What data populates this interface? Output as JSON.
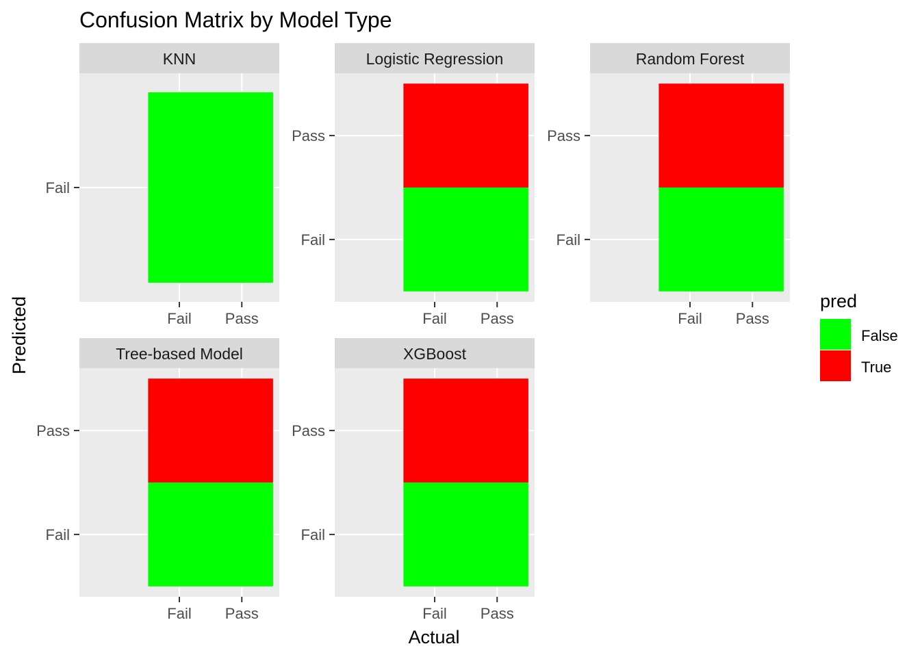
{
  "chart_data": {
    "type": "heatmap",
    "title": "Confusion Matrix by Model Type",
    "xlabel": "Actual",
    "ylabel": "Predicted",
    "x_categories": [
      "Fail",
      "Pass"
    ],
    "y_categories": [
      "Fail",
      "Pass"
    ],
    "colors": {
      "False": "#00FF00",
      "True": "#FF0000"
    },
    "legend": {
      "title": "pred",
      "position": "right",
      "entries": [
        {
          "label": "False",
          "color": "#00FF00"
        },
        {
          "label": "True",
          "color": "#FF0000"
        }
      ]
    },
    "facets": [
      {
        "name": "KNN",
        "y_levels": [
          "Fail"
        ],
        "rows": [
          {
            "predicted": "Fail",
            "pred": "False"
          }
        ]
      },
      {
        "name": "Logistic Regression",
        "y_levels": [
          "Fail",
          "Pass"
        ],
        "rows": [
          {
            "predicted": "Fail",
            "pred": "False"
          },
          {
            "predicted": "Pass",
            "pred": "True"
          }
        ]
      },
      {
        "name": "Random Forest",
        "y_levels": [
          "Fail",
          "Pass"
        ],
        "rows": [
          {
            "predicted": "Fail",
            "pred": "False"
          },
          {
            "predicted": "Pass",
            "pred": "True"
          }
        ]
      },
      {
        "name": "Tree-based Model",
        "y_levels": [
          "Fail",
          "Pass"
        ],
        "rows": [
          {
            "predicted": "Fail",
            "pred": "False"
          },
          {
            "predicted": "Pass",
            "pred": "True"
          }
        ]
      },
      {
        "name": "XGBoost",
        "y_levels": [
          "Fail",
          "Pass"
        ],
        "rows": [
          {
            "predicted": "Fail",
            "pred": "False"
          },
          {
            "predicted": "Pass",
            "pred": "True"
          }
        ]
      }
    ],
    "grid": true
  }
}
